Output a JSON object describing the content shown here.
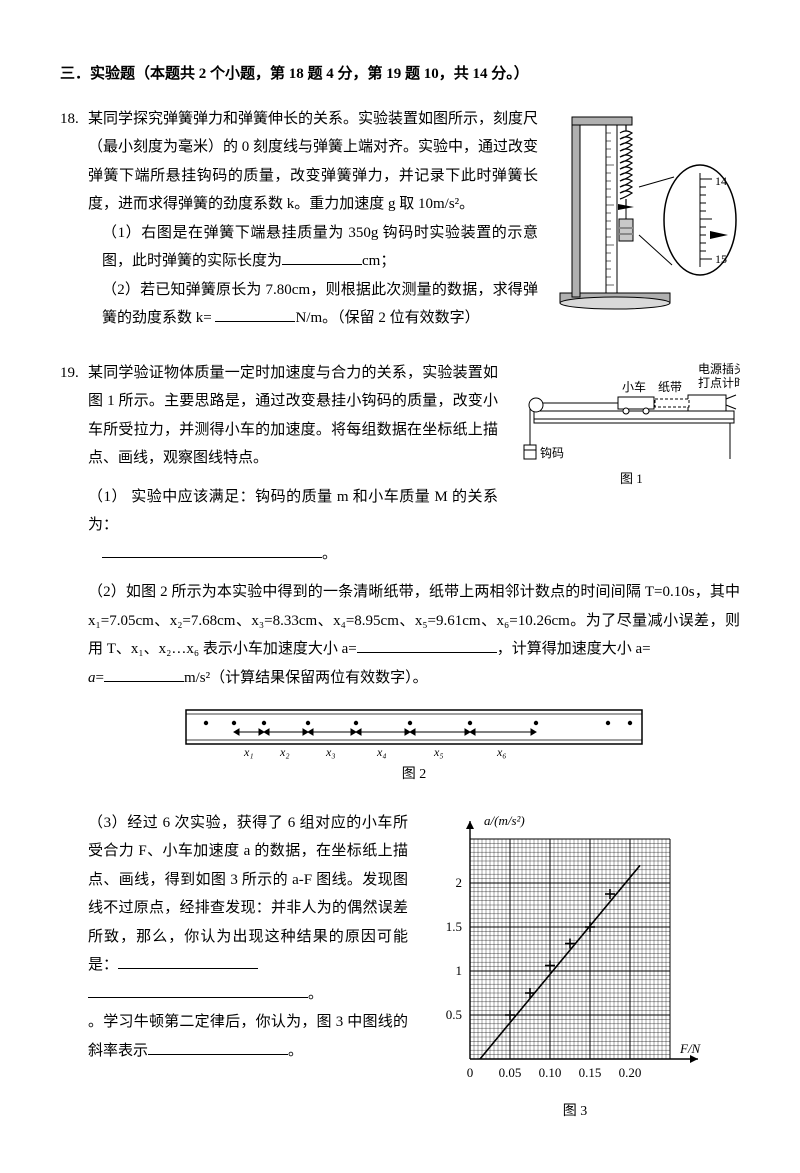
{
  "section_title": "三．实验题（本题共 2 个小题，第 18 题 4 分，第 19 题 10，共 14 分。）",
  "q18": {
    "num": "18.",
    "stem": "某同学探究弹簧弹力和弹簧伸长的关系。实验装置如图所示，刻度尺（最小刻度为毫米）的 0 刻度线与弹簧上端对齐。实验中，通过改变弹簧下端所悬挂钩码的质量，改变弹簧弹力，并记录下此时弹簧长度，进而求得弹簧的劲度系数 k。重力加速度 g 取 10m/s²。",
    "p1": "（1）右图是在弹簧下端悬挂质量为 350g 钩码时实验装置的示意图，此时弹簧的实际长度为",
    "p1_unit": "cm；",
    "p2": "（2）若已知弹簧原长为 7.80cm，则根据此次测量的数据，求得弹簧的劲度系数 k= ",
    "p2_unit": "N/m。（保留 2 位有效数字）",
    "ruler_marks": {
      "top_label": "14",
      "bottom_label": "15"
    }
  },
  "q19": {
    "num": "19.",
    "stem": "某同学验证物体质量一定时加速度与合力的关系，实验装置如图 1 所示。主要思路是，通过改变悬挂小钩码的质量，改变小车所受拉力，并测得小车的加速度。将每组数据在坐标纸上描点、画线，观察图线特点。",
    "p1": "（1）  实验中应该满足：钩码的质量 m 和小车质量 M 的关系为：",
    "p2_a": "（2）如图 2 所示为本实验中得到的一条清晰纸带，纸带上两相邻计数点的时间间隔 T=0.10s，其中 x₁=7.05cm、x₂=7.68cm、x₃=8.33cm、x₄=8.95cm、x₅=9.61cm、x₆=10.26cm。为了尽量减小误差，则用 T、x₁、x₂…x₆ 表示小车加速度大小 a=",
    "p2_b": "，计算得加速度大小 a=",
    "p2_unit": "m/s²（计算结果保留两位有效数字）。",
    "tape_x": [
      "x₁",
      "x₂",
      "x₃",
      "x₄",
      "x₅",
      "x₆"
    ],
    "p3": "（3）经过 6 次实验，获得了 6 组对应的小车所受合力 F、小车加速度 a 的数据，在坐标纸上描点、画线，得到如图 3 所示的 a-F 图线。发现图线不过原点，经排查发现：并非人为的偶然误差所致，那么，你认为出现这种结果的原因可能是：",
    "p3_tail": "。学习牛顿第二定律后，你认为，图 3 中图线的斜率表示",
    "p3_tail2": "。",
    "fig1_labels": {
      "car": "小车",
      "tape": "纸带",
      "power": "电源插头",
      "timer": "打点计时",
      "weight": "钩码",
      "caption": "图 1"
    },
    "fig2_caption": "图 2",
    "fig3": {
      "caption": "图 3",
      "y_label": "a/(m/s²)",
      "x_label": "F/N",
      "x_ticks": [
        "0",
        "0.05",
        "0.10",
        "0.15",
        "0.20"
      ],
      "y_ticks": [
        "0.5",
        "1",
        "1.5",
        "2"
      ],
      "data_points": [
        {
          "F": 0.05,
          "a": 0.5
        },
        {
          "F": 0.075,
          "a": 0.75
        },
        {
          "F": 0.1,
          "a": 1.0625
        },
        {
          "F": 0.125,
          "a": 1.3125
        },
        {
          "F": 0.15,
          "a": 1.5
        },
        {
          "F": 0.175,
          "a": 1.875
        }
      ],
      "line": {
        "x0": 0.0125,
        "y0": 0,
        "x1": 0.2125,
        "y1": 2.2
      },
      "grid_minor": 10,
      "grid_major_x": [
        0,
        2,
        4,
        6,
        8,
        10
      ],
      "colors": {
        "grid": "#000",
        "bg": "#fff"
      }
    }
  }
}
